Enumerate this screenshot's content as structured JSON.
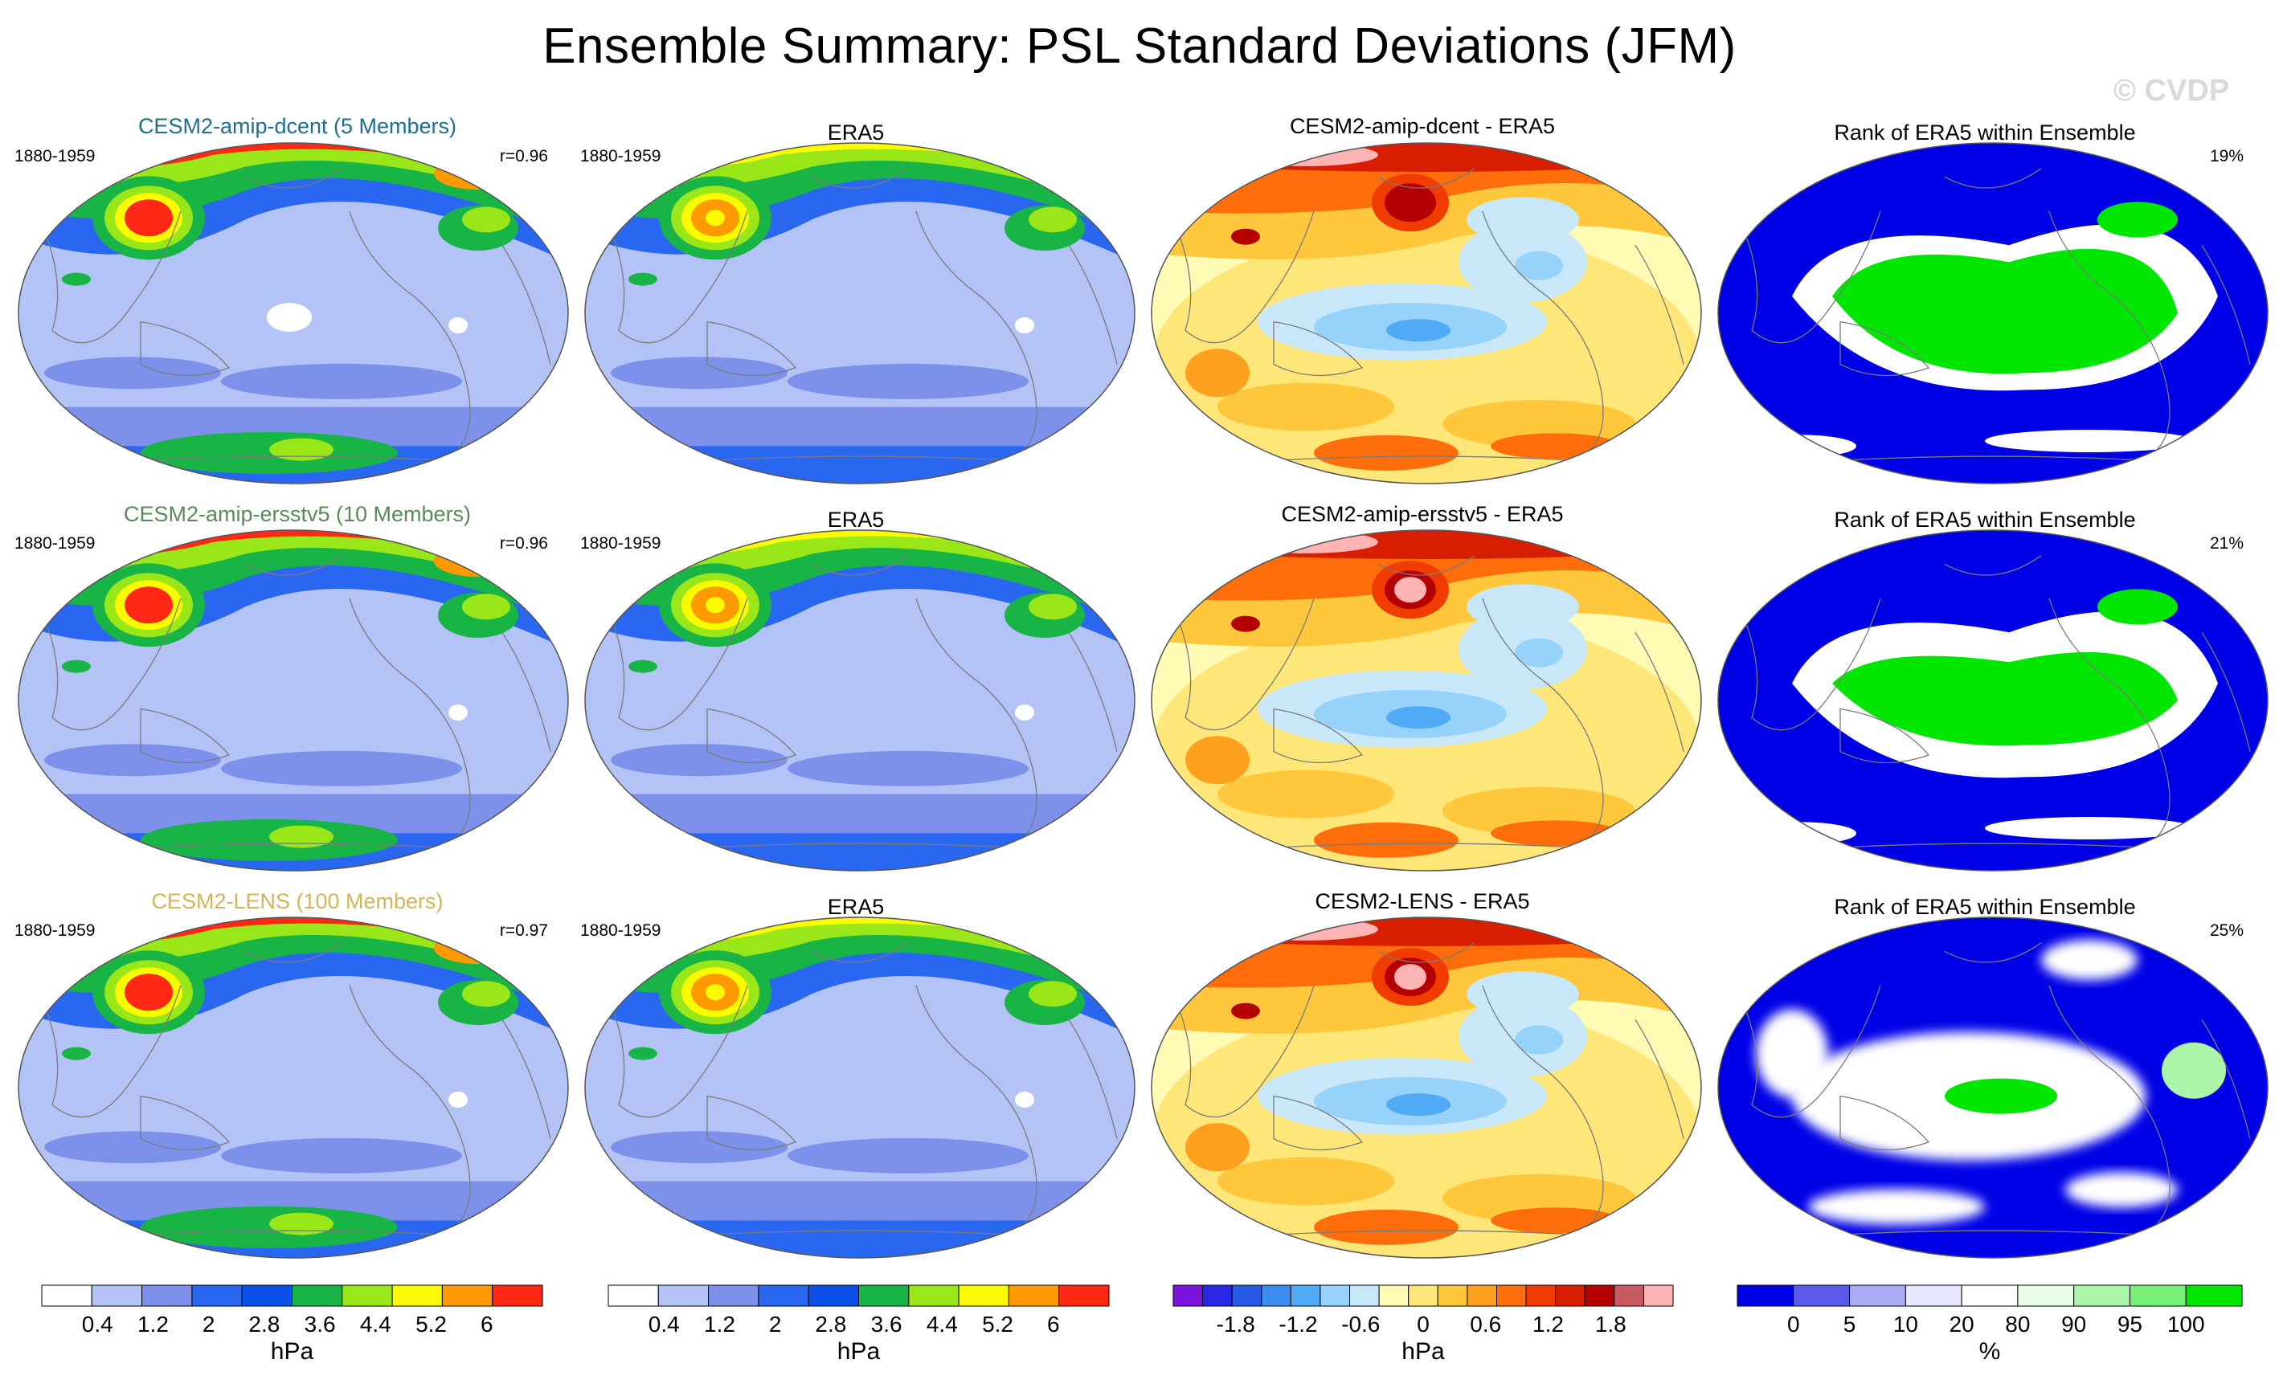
{
  "title": "Ensemble Summary: PSL Standard Deviations (JFM)",
  "watermark": "© CVDP",
  "colors": {
    "std": [
      "#ffffff",
      "#b4c3f5",
      "#7d91eb",
      "#2a67f0",
      "#0a50e6",
      "#19b446",
      "#99e619",
      "#fafa00",
      "#ff9900",
      "#ff2814"
    ],
    "diff": [
      "#7814dc",
      "#2828e6",
      "#285ae6",
      "#3c8cf0",
      "#50aaf5",
      "#96d2fa",
      "#c8e8fa",
      "#fffbb4",
      "#ffe678",
      "#ffc83c",
      "#ffa01e",
      "#ff6e0a",
      "#f03c00",
      "#d71e00",
      "#b40000",
      "#c85a64",
      "#ffb4b4"
    ],
    "rank": [
      "#0000e6",
      "#5a5aeb",
      "#aaaaf5",
      "#e6e6ff",
      "#ffffff",
      "#e6ffe6",
      "#aaf5aa",
      "#78f078",
      "#00e600"
    ]
  },
  "rows": [
    {
      "model": "CESM2-amip-dcent (5 Members)",
      "model_color": "#1e6e8c",
      "period_left": "1880-1959",
      "corr": "r=0.96",
      "obs": "ERA5",
      "period_obs": "1880-1959",
      "diff": "CESM2-amip-dcent - ERA5",
      "rank": "Rank of ERA5 within Ensemble",
      "rank_pct": "19%"
    },
    {
      "model": "CESM2-amip-ersstv5 (10 Members)",
      "model_color": "#5a8a5a",
      "period_left": "1880-1959",
      "corr": "r=0.96",
      "obs": "ERA5",
      "period_obs": "1880-1959",
      "diff": "CESM2-amip-ersstv5 - ERA5",
      "rank": "Rank of ERA5 within Ensemble",
      "rank_pct": "21%"
    },
    {
      "model": "CESM2-LENS (100 Members)",
      "model_color": "#d2b45a",
      "period_left": "1880-1959",
      "corr": "r=0.97",
      "obs": "ERA5",
      "period_obs": "1880-1959",
      "diff": "CESM2-LENS - ERA5",
      "rank": "Rank of ERA5 within Ensemble",
      "rank_pct": "25%"
    }
  ],
  "chart_data": [
    {
      "type": "colorbar",
      "name": "model-std",
      "labels": [
        "0.4",
        "1.2",
        "2",
        "2.8",
        "3.6",
        "4.4",
        "5.2",
        "6"
      ],
      "units": "hPa"
    },
    {
      "type": "colorbar",
      "name": "obs-std",
      "labels": [
        "0.4",
        "1.2",
        "2",
        "2.8",
        "3.6",
        "4.4",
        "5.2",
        "6"
      ],
      "units": "hPa"
    },
    {
      "type": "colorbar",
      "name": "difference",
      "labels": [
        "-1.8",
        "-1.2",
        "-0.6",
        "0",
        "0.6",
        "1.2",
        "1.8"
      ],
      "units": "hPa"
    },
    {
      "type": "colorbar",
      "name": "rank",
      "labels": [
        "0",
        "5",
        "10",
        "20",
        "80",
        "90",
        "95",
        "100"
      ],
      "units": "%"
    }
  ]
}
